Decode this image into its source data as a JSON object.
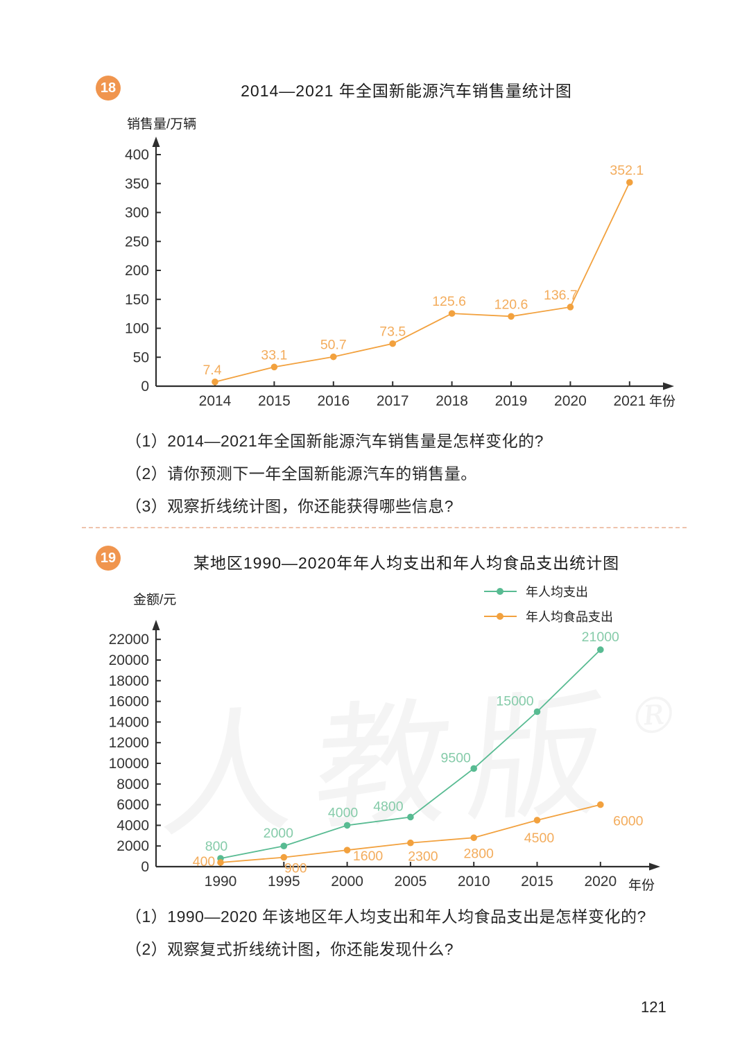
{
  "page": {
    "number": "121"
  },
  "watermark": {
    "text": "人教版",
    "symbol": "®"
  },
  "colors": {
    "orange_line": "#F2A13E",
    "orange_label": "#F3AC5C",
    "green_line": "#58BB92",
    "green_label": "#85CBA9",
    "badge": "#F0954E",
    "axis": "#2e2e2e",
    "divider_dash": "#EFC3AC"
  },
  "problems": [
    {
      "badge": "18",
      "title": "2014—2021 年全国新能源汽车销售量统计图",
      "questions": [
        "（1）2014—2021年全国新能源汽车销售量是怎样变化的?",
        "（2）请你预测下一年全国新能源汽车的销售量。",
        "（3）观察折线统计图，你还能获得哪些信息?"
      ]
    },
    {
      "badge": "19",
      "title": "某地区1990—2020年年人均支出和年人均食品支出统计图",
      "questions": [
        "（1）1990—2020 年该地区年人均支出和年人均食品支出是怎样变化的?",
        "（2）观察复式折线统计图，你还能发现什么?"
      ]
    }
  ],
  "chart_data": [
    {
      "type": "line",
      "title": "2014—2021 年全国新能源汽车销售量统计图",
      "ylabel": "销售量/万辆",
      "xlabel": "年份",
      "categories": [
        "2014",
        "2015",
        "2016",
        "2017",
        "2018",
        "2019",
        "2020",
        "2021"
      ],
      "series": [
        {
          "name": "销售量",
          "color": "#F2A13E",
          "label_color": "#F3AC5C",
          "values": [
            7.4,
            33.1,
            50.7,
            73.5,
            125.6,
            120.6,
            136.7,
            352.1
          ],
          "label_offsets": [
            [
              -4,
              -11
            ],
            [
              0,
              -11
            ],
            [
              0,
              -11
            ],
            [
              0,
              -11
            ],
            [
              -4,
              -11
            ],
            [
              0,
              -11
            ],
            [
              -14,
              -11
            ],
            [
              -4,
              -11
            ]
          ]
        }
      ],
      "ylim": [
        0,
        400
      ],
      "ytick_step": 50,
      "grid": false,
      "legend": false
    },
    {
      "type": "line",
      "title": "某地区1990—2020年年人均支出和年人均食品支出统计图",
      "ylabel": "金额/元",
      "xlabel": "年份",
      "categories": [
        "1990",
        "1995",
        "2000",
        "2005",
        "2010",
        "2015",
        "2020"
      ],
      "series": [
        {
          "name": "年人均支出",
          "color": "#58BB92",
          "label_color": "#85CBA9",
          "values": [
            800,
            2000,
            4000,
            4800,
            9500,
            15000,
            21000
          ],
          "label_offsets": [
            [
              -6,
              -11
            ],
            [
              -8,
              -12
            ],
            [
              -6,
              -12
            ],
            [
              -32,
              -9
            ],
            [
              -26,
              -9
            ],
            [
              -32,
              -9
            ],
            [
              0,
              -12
            ]
          ]
        },
        {
          "name": "年人均食品支出",
          "color": "#F2A13E",
          "label_color": "#F3AC5C",
          "values": [
            400,
            900,
            1600,
            2300,
            2800,
            4500,
            6000
          ],
          "label_offsets": [
            [
              -24,
              5
            ],
            [
              17,
              22
            ],
            [
              30,
              15
            ],
            [
              18,
              26
            ],
            [
              7,
              29
            ],
            [
              3,
              32
            ],
            [
              40,
              30
            ]
          ]
        }
      ],
      "ylim": [
        0,
        22000
      ],
      "ytick_step": 2000,
      "grid": false,
      "legend": true,
      "legend_position": "top-right"
    }
  ]
}
